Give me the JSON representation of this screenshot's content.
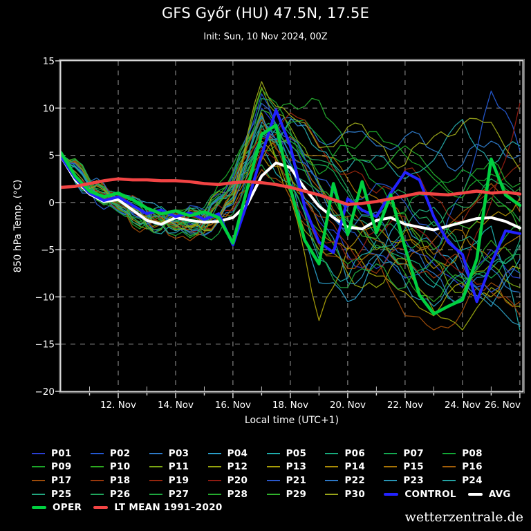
{
  "header": {
    "title": "GFS Győr (HU) 47.5N, 17.5E",
    "subtitle": "Init: Sun, 10 Nov 2024, 00Z"
  },
  "watermark": "wetterzentrale.de",
  "chart_data": {
    "type": "line",
    "title": "GFS Győr (HU) 47.5N, 17.5E",
    "subtitle": "Init: Sun, 10 Nov 2024, 00Z",
    "xlabel": "Local time (UTC+1)",
    "ylabel": "850 hPa Temp. (°C)",
    "ylim": [
      -20,
      15
    ],
    "yticks": [
      15,
      10,
      5,
      0,
      -5,
      -10,
      -15,
      -20
    ],
    "ytick_labels": [
      "15",
      "10",
      "5",
      "0",
      "−5",
      "−10",
      "−15",
      "−20"
    ],
    "background": "#000000",
    "grid": {
      "show": true,
      "style": "dashed",
      "color": "#9b9b9b",
      "x_every_days": 2,
      "y_every_deg": 5
    },
    "frame_colors": {
      "inner": "#d6d6d6",
      "outer": "#6e6e6e",
      "tick": "#e0e0e0"
    },
    "x_axis": {
      "start_day": 10,
      "end_day": 26.1,
      "month": "Nov",
      "ticks": [
        {
          "day": 12,
          "label": "12. Nov"
        },
        {
          "day": 14,
          "label": "14. Nov"
        },
        {
          "day": 16,
          "label": "16. Nov"
        },
        {
          "day": 18,
          "label": "18. Nov"
        },
        {
          "day": 20,
          "label": "20. Nov"
        },
        {
          "day": 22,
          "label": "22. Nov"
        },
        {
          "day": 24,
          "label": "24. Nov"
        },
        {
          "day": 26,
          "label": "26. Nov"
        }
      ]
    },
    "series_main": [
      {
        "name": "AVG",
        "color": "#ffffff",
        "width": 4,
        "start_day": 10,
        "step_days": 0.5,
        "values": [
          4.9,
          2.4,
          0.9,
          0.1,
          0.3,
          -0.8,
          -1.9,
          -2.3,
          -1.6,
          -1.9,
          -2.1,
          -2.0,
          -1.6,
          -0.2,
          2.8,
          4.2,
          3.7,
          1.5,
          -0.4,
          -1.6,
          -2.6,
          -2.8,
          -1.9,
          -1.6,
          -2.3,
          -2.6,
          -2.9,
          -2.5,
          -2.1,
          -1.7,
          -1.6,
          -2.0,
          -2.7
        ]
      },
      {
        "name": "CONTROL",
        "color": "#2222ff",
        "width": 4,
        "start_day": 10,
        "step_days": 0.5,
        "values": [
          4.9,
          2.6,
          1.0,
          0.2,
          0.6,
          -0.3,
          -1.2,
          -0.8,
          -1.5,
          -1.1,
          -1.8,
          -1.2,
          -4.5,
          0.0,
          5.0,
          9.8,
          6.0,
          -0.5,
          -4.2,
          -5.3,
          0.4,
          -0.8,
          -1.5,
          1.0,
          3.2,
          2.4,
          -1.5,
          -4.2,
          -5.5,
          -10.5,
          -6.5,
          -3.0,
          -3.3
        ]
      },
      {
        "name": "OPER",
        "color": "#00d040",
        "width": 4.5,
        "start_day": 10,
        "step_days": 0.5,
        "values": [
          5.3,
          2.8,
          1.2,
          0.6,
          1.0,
          0.3,
          -0.6,
          -1.2,
          -0.9,
          -1.4,
          -1.0,
          -1.6,
          -4.3,
          1.5,
          7.2,
          8.2,
          1.5,
          -4.0,
          -6.5,
          2.0,
          -3.4,
          2.2,
          -3.2,
          0.8,
          -4.8,
          -9.8,
          -11.8,
          -11.0,
          -10.3,
          -6.0,
          4.6,
          0.8,
          -0.3
        ]
      },
      {
        "name": "LT MEAN 1991–2020",
        "color": "#f24444",
        "width": 4.5,
        "start_day": 10,
        "step_days": 0.5,
        "values": [
          1.6,
          1.7,
          2.0,
          2.3,
          2.5,
          2.4,
          2.4,
          2.3,
          2.3,
          2.2,
          2.0,
          1.9,
          2.1,
          2.2,
          2.1,
          1.9,
          1.6,
          1.2,
          0.8,
          0.3,
          -0.2,
          -0.1,
          0.1,
          0.4,
          0.7,
          1.0,
          0.9,
          0.8,
          1.0,
          1.2,
          1.0,
          1.1,
          0.9
        ]
      }
    ],
    "members": [
      {
        "name": "P01",
        "color": "#2a3fd4",
        "start_day": 10,
        "step_days": 1,
        "values": [
          5.0,
          1.5,
          0.0,
          -1.5,
          -2.0,
          -1.0,
          1.0,
          10.0,
          4.0,
          -2.0,
          -5.5,
          -7.0,
          -4.0,
          -6.5,
          -9.0,
          -5.0,
          -8.0
        ]
      },
      {
        "name": "P02",
        "color": "#2458d2",
        "start_day": 10,
        "step_days": 1,
        "values": [
          4.8,
          2.0,
          -0.5,
          -2.5,
          -1.0,
          -2.0,
          0.5,
          11.5,
          6.0,
          1.0,
          -3.0,
          -5.5,
          -8.0,
          -6.0,
          1.0,
          11.8,
          5.5
        ]
      },
      {
        "name": "P03",
        "color": "#2e7ac8",
        "start_day": 10,
        "step_days": 1,
        "values": [
          5.2,
          1.0,
          0.5,
          -1.0,
          -2.5,
          -3.5,
          -1.0,
          7.0,
          9.0,
          6.5,
          7.5,
          6.0,
          7.0,
          5.5,
          4.0,
          6.5,
          5.0
        ]
      },
      {
        "name": "P04",
        "color": "#2a9ec9",
        "start_day": 10,
        "step_days": 1,
        "values": [
          4.6,
          1.8,
          1.0,
          0.0,
          -1.5,
          -2.0,
          2.0,
          8.5,
          3.0,
          -8.5,
          -10.5,
          -6.0,
          -2.0,
          -4.5,
          -8.0,
          -11.0,
          -6.0
        ]
      },
      {
        "name": "P05",
        "color": "#1fadad",
        "start_day": 10,
        "step_days": 1,
        "values": [
          5.1,
          2.2,
          -1.0,
          -2.0,
          -3.0,
          -1.5,
          0.0,
          6.0,
          2.0,
          -6.0,
          -8.0,
          -4.0,
          -6.5,
          -9.0,
          -5.0,
          -2.5,
          -13.5
        ]
      },
      {
        "name": "P06",
        "color": "#18ab7e",
        "start_day": 10,
        "step_days": 1,
        "values": [
          4.9,
          1.2,
          0.2,
          -1.8,
          -1.0,
          -2.5,
          1.5,
          9.0,
          5.0,
          2.0,
          -1.0,
          -3.5,
          -6.0,
          -8.5,
          -10.0,
          -7.0,
          -4.0
        ]
      },
      {
        "name": "P07",
        "color": "#14aa52",
        "start_day": 10,
        "step_days": 1,
        "values": [
          5.3,
          1.6,
          -0.2,
          -1.2,
          -2.2,
          -0.5,
          3.0,
          8.0,
          6.5,
          4.0,
          1.0,
          -2.0,
          -4.5,
          -2.0,
          -5.5,
          -8.0,
          -5.5
        ]
      },
      {
        "name": "P08",
        "color": "#12a836",
        "start_day": 10,
        "step_days": 1,
        "values": [
          4.7,
          1.4,
          0.8,
          -0.5,
          -1.8,
          -2.8,
          0.5,
          5.5,
          8.5,
          7.0,
          4.5,
          2.0,
          -1.0,
          1.5,
          3.5,
          1.0,
          -2.0
        ]
      },
      {
        "name": "P09",
        "color": "#1ca62a",
        "start_day": 10,
        "step_days": 1,
        "values": [
          5.0,
          1.1,
          -0.8,
          -2.2,
          -3.5,
          -2.0,
          4.0,
          12.0,
          7.5,
          3.0,
          6.0,
          7.5,
          5.0,
          2.5,
          0.5,
          3.0,
          1.5
        ]
      },
      {
        "name": "P10",
        "color": "#2daa20",
        "start_day": 10,
        "step_days": 1,
        "values": [
          4.8,
          2.4,
          0.3,
          -1.6,
          -0.8,
          -1.8,
          2.5,
          7.5,
          2.5,
          -3.0,
          -6.5,
          -4.5,
          -7.5,
          -10.5,
          -8.0,
          -4.0,
          -7.5
        ]
      },
      {
        "name": "P11",
        "color": "#7aa614",
        "start_day": 10,
        "step_days": 1,
        "values": [
          5.2,
          1.9,
          -0.3,
          -2.8,
          -2.0,
          -3.0,
          0.0,
          12.2,
          8.0,
          2.0,
          -2.5,
          -5.0,
          -3.0,
          -6.0,
          -9.5,
          -6.5,
          -9.0
        ]
      },
      {
        "name": "P12",
        "color": "#96a40e",
        "start_day": 10,
        "step_days": 1,
        "values": [
          4.9,
          1.3,
          0.6,
          -1.4,
          -2.6,
          -1.2,
          1.8,
          6.5,
          1.0,
          -5.0,
          -7.5,
          -9.0,
          -6.0,
          -11.5,
          -13.5,
          -9.0,
          -11.0
        ]
      },
      {
        "name": "P13",
        "color": "#a89e08",
        "start_day": 10,
        "step_days": 1,
        "values": [
          5.1,
          2.1,
          -0.6,
          -2.4,
          -1.4,
          -2.6,
          1.2,
          9.5,
          0.5,
          -12.5,
          -4.8,
          -7.8,
          -9.5,
          -12.0,
          -8.5,
          -10.0,
          -7.0
        ]
      },
      {
        "name": "P14",
        "color": "#ab8c06",
        "start_day": 10,
        "step_days": 1,
        "values": [
          4.7,
          1.7,
          0.1,
          -1.9,
          -2.9,
          -1.6,
          0.8,
          5.0,
          2.8,
          -2.5,
          -5.0,
          -2.5,
          -4.0,
          -7.0,
          -4.5,
          -1.5,
          0.5
        ]
      },
      {
        "name": "P15",
        "color": "#a87406",
        "start_day": 10,
        "step_days": 1,
        "values": [
          5.0,
          2.3,
          -0.4,
          -1.1,
          -2.1,
          -3.2,
          -0.5,
          4.5,
          7.0,
          5.0,
          2.5,
          0.5,
          -2.5,
          -5.5,
          -3.0,
          -6.0,
          -3.5
        ]
      },
      {
        "name": "P16",
        "color": "#a35e08",
        "start_day": 10,
        "step_days": 1,
        "values": [
          4.8,
          1.0,
          0.4,
          -2.0,
          -1.2,
          -2.2,
          1.0,
          8.8,
          4.5,
          1.5,
          -1.5,
          -4.0,
          -6.5,
          -4.0,
          -1.0,
          2.0,
          -1.0
        ]
      },
      {
        "name": "P17",
        "color": "#9d4c0a",
        "start_day": 10,
        "step_days": 1,
        "values": [
          5.2,
          1.5,
          -0.7,
          -2.6,
          -3.8,
          -2.4,
          -1.5,
          3.5,
          0.5,
          -4.5,
          -7.0,
          -5.5,
          -12.0,
          -13.5,
          -11.5,
          -8.5,
          -10.5
        ]
      },
      {
        "name": "P18",
        "color": "#99380c",
        "start_day": 10,
        "step_days": 1,
        "values": [
          4.9,
          2.0,
          0.7,
          -0.8,
          -2.4,
          -1.4,
          2.2,
          7.8,
          3.5,
          -1.5,
          -4.5,
          -7.5,
          -5.0,
          -8.0,
          -6.0,
          -9.5,
          -12.0
        ]
      },
      {
        "name": "P19",
        "color": "#96260e",
        "start_day": 10,
        "step_days": 1,
        "values": [
          5.1,
          1.2,
          -0.1,
          -1.7,
          -1.0,
          -2.7,
          0.3,
          6.8,
          9.5,
          6.0,
          3.0,
          1.0,
          3.5,
          0.5,
          -2.0,
          1.5,
          4.0
        ]
      },
      {
        "name": "P20",
        "color": "#901b12",
        "start_day": 10,
        "step_days": 1,
        "values": [
          4.6,
          1.8,
          0.9,
          -1.3,
          -2.7,
          -1.8,
          -0.8,
          5.8,
          1.5,
          -3.5,
          -6.0,
          -3.0,
          -1.5,
          -4.5,
          -7.5,
          0.0,
          10.5
        ]
      },
      {
        "name": "P21",
        "color": "#2a58cc",
        "start_day": 10,
        "step_days": 1,
        "values": [
          5.0,
          1.4,
          -0.9,
          -2.1,
          -1.6,
          -0.8,
          2.8,
          10.5,
          6.8,
          2.5,
          -0.5,
          2.0,
          0.0,
          -3.0,
          -6.5,
          -9.5,
          -7.5
        ]
      },
      {
        "name": "P22",
        "color": "#2d78c6",
        "start_day": 10,
        "step_days": 1,
        "values": [
          4.8,
          2.2,
          0.2,
          -1.5,
          -2.3,
          -3.4,
          -0.2,
          9.2,
          5.2,
          1.8,
          -3.5,
          -1.0,
          -5.5,
          -7.5,
          -10.5,
          -7.0,
          -9.5
        ]
      },
      {
        "name": "P23",
        "color": "#2996b6",
        "start_day": 10,
        "step_days": 1,
        "values": [
          5.2,
          1.6,
          -0.5,
          -2.3,
          -3.2,
          -2.1,
          1.4,
          7.2,
          3.8,
          -1.0,
          -8.5,
          -5.5,
          -8.5,
          -11.0,
          -7.5,
          -10.5,
          -13.0
        ]
      },
      {
        "name": "P24",
        "color": "#25a4a4",
        "start_day": 10,
        "step_days": 1,
        "values": [
          4.7,
          1.9,
          0.5,
          -1.0,
          -2.0,
          -1.3,
          0.6,
          6.2,
          8.8,
          5.5,
          3.5,
          5.0,
          2.5,
          4.5,
          8.8,
          4.0,
          6.0
        ]
      },
      {
        "name": "P25",
        "color": "#22a780",
        "start_day": 10,
        "step_days": 1,
        "values": [
          5.0,
          1.3,
          -0.3,
          -1.9,
          -1.3,
          -2.9,
          1.7,
          8.2,
          4.2,
          0.0,
          -2.0,
          -4.8,
          -2.8,
          -0.5,
          -4.0,
          -6.5,
          -4.5
        ]
      },
      {
        "name": "P26",
        "color": "#20a75d",
        "start_day": 10,
        "step_days": 1,
        "values": [
          4.9,
          2.5,
          0.8,
          -0.7,
          -2.5,
          -1.7,
          2.4,
          11.0,
          7.2,
          4.5,
          1.5,
          -1.5,
          1.0,
          -2.5,
          -0.5,
          2.5,
          0.5
        ]
      },
      {
        "name": "P27",
        "color": "#1ea740",
        "start_day": 10,
        "step_days": 1,
        "values": [
          5.1,
          1.1,
          -1.0,
          -2.7,
          -1.8,
          -3.6,
          -1.2,
          4.0,
          1.8,
          -5.5,
          -9.0,
          -6.5,
          -9.0,
          -6.0,
          -8.5,
          -5.5,
          -2.5
        ]
      },
      {
        "name": "P28",
        "color": "#25ac2e",
        "start_day": 10,
        "step_days": 1,
        "values": [
          4.8,
          1.7,
          0.0,
          -1.4,
          -2.8,
          -2.3,
          0.9,
          7.0,
          10.5,
          10.8,
          5.5,
          3.5,
          6.0,
          3.0,
          1.0,
          4.5,
          2.0
        ]
      },
      {
        "name": "P29",
        "color": "#31b22c",
        "start_day": 10,
        "step_days": 1,
        "values": [
          5.3,
          2.0,
          -0.6,
          -2.5,
          -1.5,
          -0.9,
          3.2,
          9.8,
          6.2,
          1.2,
          -1.8,
          -3.8,
          -1.2,
          -5.0,
          -2.5,
          0.5,
          -3.0
        ]
      },
      {
        "name": "P30",
        "color": "#9aa51a",
        "start_day": 10,
        "step_days": 1,
        "values": [
          4.9,
          1.5,
          0.3,
          -1.6,
          -2.4,
          -3.0,
          0.2,
          12.8,
          9.2,
          5.8,
          8.0,
          6.5,
          4.0,
          7.0,
          8.3,
          8.5,
          3.5
        ]
      }
    ],
    "legend_position": "bottom",
    "legend_rows_layout": "P01–P24 rows of 8, P25–P30 + CONTROL + AVG, then OPER + LT MEAN"
  }
}
